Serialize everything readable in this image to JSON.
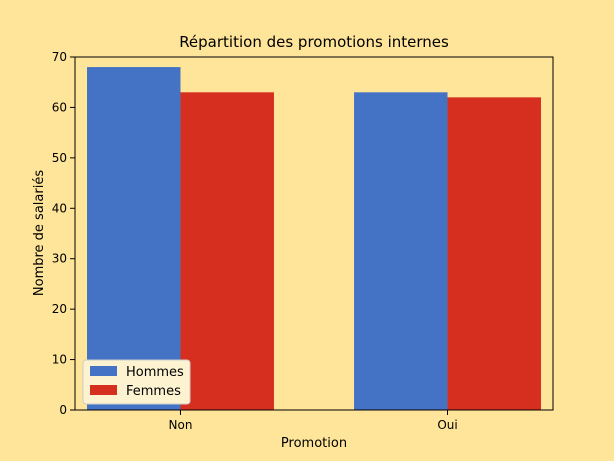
{
  "chart_data": {
    "type": "bar",
    "title": "Répartition des promotions internes",
    "xlabel": "Promotion",
    "ylabel": "Nombre de salariés",
    "categories": [
      "Non",
      "Oui"
    ],
    "series": [
      {
        "name": "Hommes",
        "values": [
          68,
          63
        ],
        "color": "#4472c4"
      },
      {
        "name": "Femmes",
        "values": [
          63,
          62
        ],
        "color": "#d62f20"
      }
    ],
    "ylim": [
      0,
      70
    ],
    "yticks": [
      0,
      10,
      20,
      30,
      40,
      50,
      60,
      70
    ],
    "grid": false,
    "legend_position": "lower-left",
    "background": "#ffe599"
  }
}
